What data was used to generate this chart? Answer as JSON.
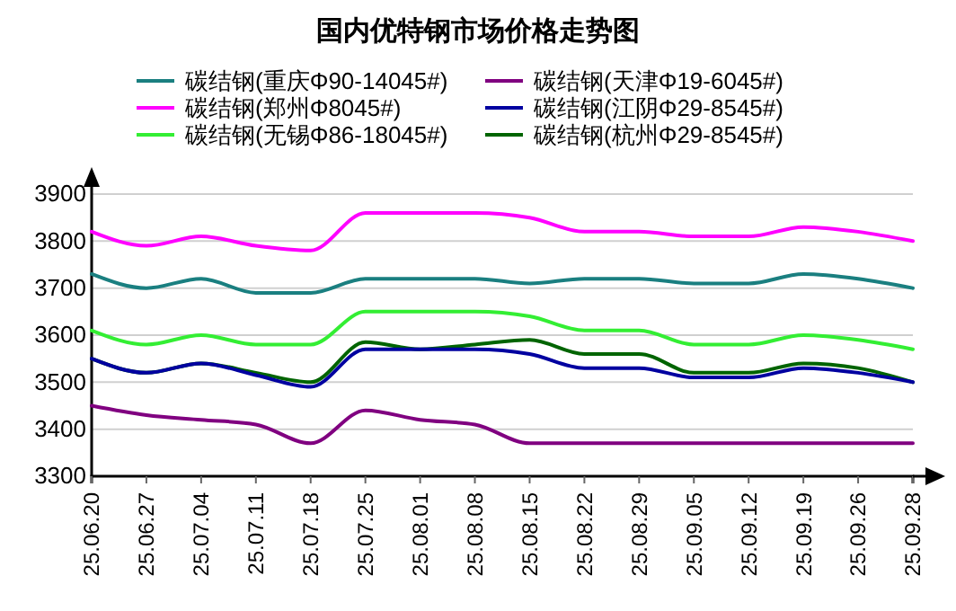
{
  "chart_data": {
    "type": "line",
    "title": "国内优特钢市场价格走势图",
    "categories": [
      "25.06.20",
      "25.06.27",
      "25.07.04",
      "25.07.11",
      "25.07.18",
      "25.07.25",
      "25.08.01",
      "25.08.08",
      "25.08.15",
      "25.08.22",
      "25.08.29",
      "25.09.05",
      "25.09.12",
      "25.09.19",
      "25.09.26",
      "25.09.28"
    ],
    "series": [
      {
        "name": "碳结钢(重庆Φ90-14045#)",
        "color": "#1a7f80",
        "values": [
          3730,
          3700,
          3720,
          3690,
          3690,
          3720,
          3720,
          3720,
          3710,
          3720,
          3720,
          3710,
          3710,
          3730,
          3720,
          3700
        ]
      },
      {
        "name": "碳结钢(郑州Φ8045#)",
        "color": "#ff00ff",
        "values": [
          3820,
          3790,
          3810,
          3790,
          3780,
          3860,
          3860,
          3860,
          3850,
          3820,
          3820,
          3810,
          3810,
          3830,
          3820,
          3800
        ]
      },
      {
        "name": "碳结钢(无锡Φ86-18045#)",
        "color": "#33ee33",
        "values": [
          3610,
          3580,
          3600,
          3580,
          3580,
          3650,
          3650,
          3650,
          3640,
          3610,
          3610,
          3580,
          3580,
          3600,
          3590,
          3570
        ]
      },
      {
        "name": "碳结钢(天津Φ19-6045#)",
        "color": "#800080",
        "values": [
          3450,
          3430,
          3420,
          3410,
          3370,
          3440,
          3420,
          3410,
          3370,
          3370,
          3370,
          3370,
          3370,
          3370,
          3370,
          3370
        ]
      },
      {
        "name": "碳结钢(江阴Φ29-8545#)",
        "color": "#0000a0",
        "values": [
          3550,
          3520,
          3540,
          3515,
          3490,
          3570,
          3570,
          3570,
          3560,
          3530,
          3530,
          3510,
          3510,
          3530,
          3520,
          3500
        ]
      },
      {
        "name": "碳结钢(杭州Φ29-8545#)",
        "color": "#006400",
        "values": [
          3550,
          3520,
          3540,
          3520,
          3500,
          3585,
          3570,
          3580,
          3590,
          3560,
          3560,
          3520,
          3520,
          3540,
          3530,
          3500
        ]
      }
    ],
    "ylim": [
      3300,
      3900
    ],
    "yticks": [
      3300,
      3400,
      3500,
      3600,
      3700,
      3800,
      3900
    ],
    "grid": "y",
    "legend": "top"
  }
}
